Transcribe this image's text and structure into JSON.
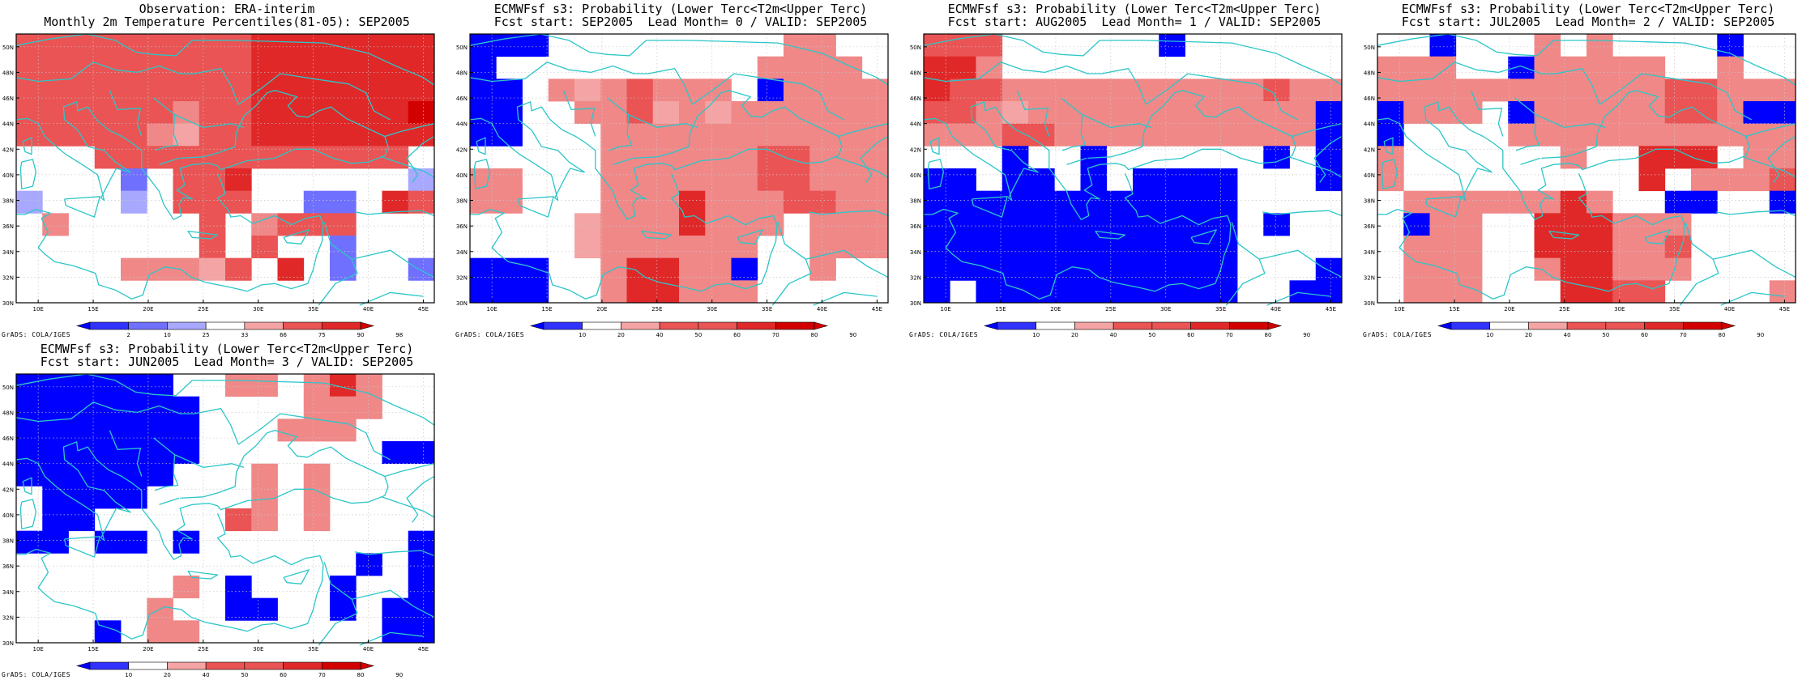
{
  "credit": "GrADS: COLA/IGES",
  "lat_ticks": [
    "30N",
    "32N",
    "34N",
    "36N",
    "38N",
    "40N",
    "42N",
    "44N",
    "46N",
    "48N",
    "50N"
  ],
  "lon_ticks": [
    "10E",
    "15E",
    "20E",
    "25E",
    "30E",
    "35E",
    "40E",
    "45E"
  ],
  "colors": {
    "coast": "#2cc6c8",
    "grid": "#c8c8c8",
    "frame": "#000000",
    "palette": {
      "B": "#0000ff",
      "b": "#3232ff",
      "m": "#7070ff",
      "l": "#a8a8ff",
      "W": "#ffffff",
      "p": "#f4a4a4",
      "q": "#f08888",
      "r": "#ea5454",
      "R": "#e02828",
      "D": "#d20000"
    }
  },
  "panels": [
    {
      "title1": "Observation: ERA-interim",
      "title2": "Monthly 2m Temperature Percentiles(81-05): SEP2005",
      "colorbar": {
        "labels": [
          "2",
          "10",
          "25",
          "33",
          "66",
          "75",
          "90",
          "98"
        ],
        "colors": [
          "#0000ff",
          "#3232ff",
          "#7070ff",
          "#a8a8ff",
          "#ffffff",
          "#f4a4a4",
          "#ea5454",
          "#e02828",
          "#d20000"
        ]
      },
      "grid": [
        "rrrrrrrrrRRRRRRR",
        "rrrrrrrrrRRRRRRR",
        "rrrrrrrrrRRRRRRR",
        "rrrrrrqrrRRRRRRD",
        "rrrrrqprrRRRRRRR",
        "WWWrrrrrrrrrrrrW",
        "WWWWmWrrRWWWWWWl",
        "lWWWlWrrrWWmmWRr",
        "WqWWWWWrWqrrrWWW",
        "WWWWWWWrWrWWmWWW",
        "WWWWqqqprWRWmWWm",
        "WWWWWWWWWWWWWWWW"
      ]
    },
    {
      "title1": "ECMWFsf s3: Probability (Lower Terc<T2m<Upper Terc)",
      "title2": "Fcst start: SEP2005  Lead Month= 0 / VALID: SEP2005",
      "colorbar": {
        "labels": [
          "10",
          "20",
          "40",
          "50",
          "60",
          "70",
          "80",
          "90"
        ],
        "colors": [
          "#0000ff",
          "#3232ff",
          "#ffffff",
          "#f4a4a4",
          "#ea5454",
          "#ea5454",
          "#e02828",
          "#d20000",
          "#d20000"
        ]
      },
      "grid": [
        "BBBWWWWWWWWWqqWW",
        "BWWWWWWWWWWqqqqW",
        "BBWqpqrqqqWBqqqq",
        "BBWWqqrpqpqqqqqq",
        "BBWWWqqqqqqqqqqq",
        "WWWWWqqqqqqrrqqq",
        "qqWWWqqqqqqrrqqq",
        "qqWWWqqqRqqqrrqq",
        "WWWWpqqqRqqqWqqq",
        "WWWWpqqqqqqWWqqq",
        "BBBWWqRRqqBWWqWW",
        "BBBWWqRRqqqWWWWW"
      ]
    },
    {
      "title1": "ECMWFsf s3: Probability (Lower Terc<T2m<Upper Terc)",
      "title2": "Fcst start: AUG2005  Lead Month= 1 / VALID: SEP2005",
      "colorbar": {
        "labels": [
          "10",
          "20",
          "40",
          "50",
          "60",
          "70",
          "80",
          "90"
        ],
        "colors": [
          "#0000ff",
          "#3232ff",
          "#ffffff",
          "#f4a4a4",
          "#ea5454",
          "#ea5454",
          "#e02828",
          "#d20000",
          "#d20000"
        ]
      },
      "grid": [
        "rrrWWWWWWBWWWWWW",
        "RRqWWWWWWWWWWWWW",
        "Rrrqqqqqqqqqqrqq",
        "rrqpqqqqqqqqqqqB",
        "qqqrrqqqqqqqqqqB",
        "WWWBWWBWWWWWWBWB",
        "BBWBBWBWBBBBWWWB",
        "BBBBBBBBBBBBWWWW",
        "BBBBBBBBBBBBWBWW",
        "BBBBBBBBBBBBWWWW",
        "BBBBBBBBBBBBWWWB",
        "BWBBBBBBBBBBWWBB"
      ]
    },
    {
      "title1": "ECMWFsf s3: Probability (Lower Terc<T2m<Upper Terc)",
      "title2": "Fcst start: JUL2005  Lead Month= 2 / VALID: SEP2005",
      "colorbar": {
        "labels": [
          "10",
          "20",
          "40",
          "50",
          "60",
          "70",
          "80",
          "90"
        ],
        "colors": [
          "#0000ff",
          "#3232ff",
          "#ffffff",
          "#f4a4a4",
          "#ea5454",
          "#ea5454",
          "#e02828",
          "#d20000",
          "#d20000"
        ]
      },
      "grid": [
        "WWBWWWqWqWWWWBWW",
        "qqqWWBqqqqqWWqWW",
        "qqqqqqqqqqqrrqqq",
        "BqqqWBqqqqqrrqBB",
        "BWWWWqqqqqqqqqqq",
        "qWWWWWWqWWRRRWqq",
        "qWWWWWWWWWRWqqqr",
        "WqqqqqqRqWWBBWWB",
        "WBqqWWRRRqqqWWWW",
        "WqqqWWRRRqqrWWWW",
        "WqqqWWqRRqqqWWWW",
        "WqqqWWWRRrrWWWWq"
      ]
    },
    {
      "title1": "ECMWFsf s3: Probability (Lower Terc<T2m<Upper Terc)",
      "title2": "Fcst start: JUN2005  Lead Month= 3 / VALID: SEP2005",
      "colorbar": {
        "labels": [
          "10",
          "20",
          "40",
          "50",
          "60",
          "70",
          "80",
          "90"
        ],
        "colors": [
          "#0000ff",
          "#3232ff",
          "#ffffff",
          "#f4a4a4",
          "#ea5454",
          "#ea5454",
          "#e02828",
          "#d20000",
          "#d20000"
        ]
      },
      "grid": [
        "BBBBBBWWqqWqRqWW",
        "BBBBBBBWWWWqqqWW",
        "BBBBBBBWWWqqqWWW",
        "BBBBBBBWWWWWWWBB",
        "BBBBBBWWWqWqWWWW",
        "WBBBBWWWWqWqWWWW",
        "WBBWWWWWrqWqWWWW",
        "BBWBBWBWWWWWWWWB",
        "WWWWWWWWWWWWWBWB",
        "WWWWWWqWBWWWBWWB",
        "WWWWWqWWBBWWBWBB",
        "WWWBWqqWWWWWWWBB"
      ]
    }
  ]
}
